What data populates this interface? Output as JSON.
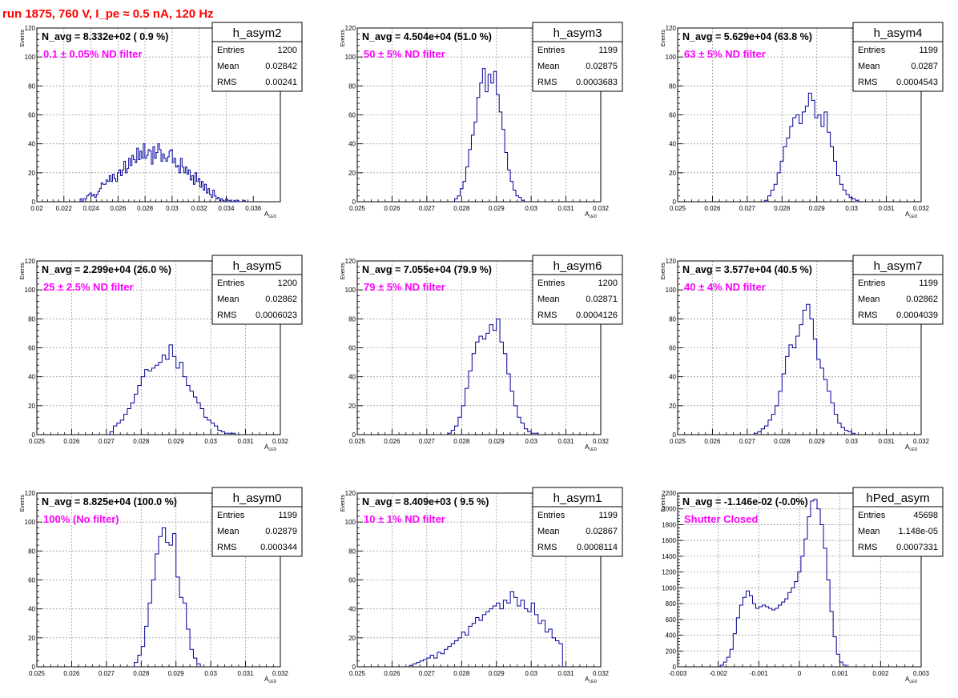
{
  "page": {
    "run_title": "run 1875,   760 V, I_pe ≈ 0.5 nA, 120 Hz",
    "hist_color": "#000099",
    "label_color": "#ff00ff",
    "title_color": "#ff0000"
  },
  "chart_data": [
    {
      "type": "histogram",
      "name": "h_asym2",
      "navg": "N_avg = 8.332e+02 ( 0.9 %)",
      "filter": "0.1 ± 0.05% ND filter",
      "stats": [
        {
          "label": "Entries",
          "value": "1200"
        },
        {
          "label": "Mean",
          "value": "0.02842"
        },
        {
          "label": "RMS",
          "value": "0.00241"
        }
      ],
      "xlim": [
        0.02,
        0.038
      ],
      "ylim": [
        0,
        120
      ],
      "xticks": [
        0.02,
        0.022,
        0.024,
        0.026,
        0.028,
        0.03,
        0.032,
        0.034,
        0.036
      ],
      "xtick_labels": [
        "0.02",
        "0.022",
        "0.024",
        "0.026",
        "0.028",
        "0.03",
        "0.032",
        "0.034",
        "0.036"
      ],
      "yticks": [
        0,
        20,
        40,
        60,
        80,
        100,
        120
      ],
      "ytick_labels": [
        "0",
        "20",
        "40",
        "60",
        "80",
        "100",
        "120"
      ],
      "xlabel": "A",
      "xlabel_sub": "LED",
      "ylabel": "Events",
      "bin_edges": [
        0.0232,
        0.0354
      ],
      "counts": [
        2,
        0,
        2,
        2,
        4,
        5,
        6,
        4,
        5,
        3,
        5,
        7,
        9,
        13,
        12,
        12,
        15,
        14,
        18,
        14,
        19,
        16,
        14,
        20,
        22,
        18,
        22,
        28,
        20,
        23,
        30,
        25,
        32,
        29,
        27,
        37,
        29,
        35,
        30,
        40,
        30,
        32,
        36,
        35,
        26,
        38,
        30,
        34,
        40,
        36,
        28,
        33,
        30,
        28,
        31,
        35,
        36,
        27,
        30,
        24,
        25,
        20,
        30,
        24,
        20,
        24,
        19,
        22,
        15,
        18,
        12,
        20,
        14,
        16,
        10,
        14,
        8,
        12,
        6,
        9,
        5,
        3,
        8,
        4,
        2,
        3,
        1,
        2,
        1,
        0,
        2,
        1,
        1,
        0,
        0,
        1,
        0,
        1,
        0,
        0,
        0,
        1
      ]
    },
    {
      "type": "histogram",
      "name": "h_asym3",
      "navg": "N_avg = 4.504e+04 (51.0 %)",
      "filter": "50 ± 5% ND filter",
      "stats": [
        {
          "label": "Entries",
          "value": "1199"
        },
        {
          "label": "Mean",
          "value": "0.02875"
        },
        {
          "label": "RMS",
          "value": "0.0003683"
        }
      ],
      "xlim": [
        0.025,
        0.032
      ],
      "ylim": [
        0,
        120
      ],
      "xticks": [
        0.025,
        0.026,
        0.027,
        0.028,
        0.029,
        0.03,
        0.031,
        0.032
      ],
      "xtick_labels": [
        "0.025",
        "0.026",
        "0.027",
        "0.028",
        "0.029",
        "0.03",
        "0.031",
        "0.032"
      ],
      "yticks": [
        0,
        20,
        40,
        60,
        80,
        100,
        120
      ],
      "ytick_labels": [
        "0",
        "20",
        "40",
        "60",
        "80",
        "100",
        "120"
      ],
      "xlabel": "A",
      "xlabel_sub": "LED",
      "ylabel": "Events",
      "bin_edges": [
        0.0278,
        0.0298
      ],
      "counts": [
        2,
        4,
        9,
        14,
        24,
        36,
        46,
        55,
        72,
        82,
        92,
        76,
        88,
        82,
        90,
        74,
        62,
        50,
        34,
        22,
        14,
        8,
        4,
        3,
        1
      ]
    },
    {
      "type": "histogram",
      "name": "h_asym4",
      "navg": "N_avg = 5.629e+04 (63.8 %)",
      "filter": "63 ± 5% ND filter",
      "stats": [
        {
          "label": "Entries",
          "value": "1199"
        },
        {
          "label": "Mean",
          "value": "0.0287"
        },
        {
          "label": "RMS",
          "value": "0.0004543"
        }
      ],
      "xlim": [
        0.025,
        0.032
      ],
      "ylim": [
        0,
        120
      ],
      "xticks": [
        0.025,
        0.026,
        0.027,
        0.028,
        0.029,
        0.03,
        0.031,
        0.032
      ],
      "xtick_labels": [
        "0.025",
        "0.026",
        "0.027",
        "0.028",
        "0.029",
        "0.03",
        "0.031",
        "0.032"
      ],
      "yticks": [
        0,
        20,
        40,
        60,
        80,
        100,
        120
      ],
      "ytick_labels": [
        "0",
        "20",
        "40",
        "60",
        "80",
        "100",
        "120"
      ],
      "xlabel": "A",
      "xlabel_sub": "LED",
      "ylabel": "Events",
      "bin_edges": [
        0.0275,
        0.0302
      ],
      "counts": [
        1,
        4,
        8,
        12,
        20,
        28,
        38,
        44,
        52,
        58,
        60,
        54,
        62,
        66,
        75,
        70,
        58,
        60,
        52,
        62,
        48,
        38,
        28,
        18,
        12,
        8,
        5,
        3,
        2,
        1
      ]
    },
    {
      "type": "histogram",
      "name": "h_asym5",
      "navg": "N_avg = 2.299e+04 (26.0 %)",
      "filter": "25 ± 2.5% ND filter",
      "stats": [
        {
          "label": "Entries",
          "value": "1200"
        },
        {
          "label": "Mean",
          "value": "0.02862"
        },
        {
          "label": "RMS",
          "value": "0.0006023"
        }
      ],
      "xlim": [
        0.025,
        0.032
      ],
      "ylim": [
        0,
        120
      ],
      "xticks": [
        0.025,
        0.026,
        0.027,
        0.028,
        0.029,
        0.03,
        0.031,
        0.032
      ],
      "xtick_labels": [
        "0.025",
        "0.026",
        "0.027",
        "0.028",
        "0.029",
        "0.03",
        "0.031",
        "0.032"
      ],
      "yticks": [
        0,
        20,
        40,
        60,
        80,
        100,
        120
      ],
      "ytick_labels": [
        "0",
        "20",
        "40",
        "60",
        "80",
        "100",
        "120"
      ],
      "xlabel": "A",
      "xlabel_sub": "LED",
      "ylabel": "Events",
      "bin_edges": [
        0.0271,
        0.0307
      ],
      "counts": [
        2,
        6,
        8,
        10,
        14,
        18,
        22,
        28,
        34,
        40,
        45,
        44,
        46,
        48,
        50,
        55,
        52,
        62,
        54,
        46,
        50,
        40,
        34,
        30,
        26,
        22,
        18,
        12,
        10,
        8,
        6,
        3,
        2,
        1,
        1,
        1
      ]
    },
    {
      "type": "histogram",
      "name": "h_asym6",
      "navg": "N_avg = 7.055e+04 (79.9 %)",
      "filter": "79 ± 5% ND filter",
      "stats": [
        {
          "label": "Entries",
          "value": "1200"
        },
        {
          "label": "Mean",
          "value": "0.02871"
        },
        {
          "label": "RMS",
          "value": "0.0004126"
        }
      ],
      "xlim": [
        0.025,
        0.032
      ],
      "ylim": [
        0,
        120
      ],
      "xticks": [
        0.025,
        0.026,
        0.027,
        0.028,
        0.029,
        0.03,
        0.031,
        0.032
      ],
      "xtick_labels": [
        "0.025",
        "0.026",
        "0.027",
        "0.028",
        "0.029",
        "0.03",
        "0.031",
        "0.032"
      ],
      "yticks": [
        0,
        20,
        40,
        60,
        80,
        100,
        120
      ],
      "ytick_labels": [
        "0",
        "20",
        "40",
        "60",
        "80",
        "100",
        "120"
      ],
      "xlabel": "A",
      "xlabel_sub": "LED",
      "ylabel": "Events",
      "bin_edges": [
        0.0276,
        0.0302
      ],
      "counts": [
        1,
        3,
        6,
        12,
        20,
        32,
        44,
        56,
        64,
        68,
        66,
        70,
        76,
        72,
        80,
        64,
        56,
        42,
        30,
        20,
        12,
        8,
        4,
        2,
        1,
        1
      ]
    },
    {
      "type": "histogram",
      "name": "h_asym7",
      "navg": "N_avg = 3.577e+04 (40.5 %)",
      "filter": "40 ± 4% ND filter",
      "stats": [
        {
          "label": "Entries",
          "value": "1199"
        },
        {
          "label": "Mean",
          "value": "0.02862"
        },
        {
          "label": "RMS",
          "value": "0.0004039"
        }
      ],
      "xlim": [
        0.025,
        0.032
      ],
      "ylim": [
        0,
        120
      ],
      "xticks": [
        0.025,
        0.026,
        0.027,
        0.028,
        0.029,
        0.03,
        0.031,
        0.032
      ],
      "xtick_labels": [
        "0.025",
        "0.026",
        "0.027",
        "0.028",
        "0.029",
        "0.03",
        "0.031",
        "0.032"
      ],
      "yticks": [
        0,
        20,
        40,
        60,
        80,
        100,
        120
      ],
      "ytick_labels": [
        "0",
        "20",
        "40",
        "60",
        "80",
        "100",
        "120"
      ],
      "xlabel": "A",
      "xlabel_sub": "LED",
      "ylabel": "Events",
      "bin_edges": [
        0.0272,
        0.0301
      ],
      "counts": [
        1,
        2,
        4,
        6,
        10,
        14,
        20,
        30,
        42,
        54,
        62,
        60,
        68,
        76,
        86,
        90,
        80,
        66,
        52,
        46,
        38,
        30,
        22,
        14,
        8,
        5,
        3,
        2,
        1
      ]
    },
    {
      "type": "histogram",
      "name": "h_asym0",
      "navg": "N_avg = 8.825e+04 (100.0 %)",
      "filter": "100% (No filter)",
      "stats": [
        {
          "label": "Entries",
          "value": "1199"
        },
        {
          "label": "Mean",
          "value": "0.02879"
        },
        {
          "label": "RMS",
          "value": "0.000344"
        }
      ],
      "xlim": [
        0.025,
        0.032
      ],
      "ylim": [
        0,
        120
      ],
      "xticks": [
        0.025,
        0.026,
        0.027,
        0.028,
        0.029,
        0.03,
        0.031,
        0.032
      ],
      "xtick_labels": [
        "0.025",
        "0.026",
        "0.027",
        "0.028",
        "0.029",
        "0.03",
        "0.031",
        "0.032"
      ],
      "yticks": [
        0,
        20,
        40,
        60,
        80,
        100,
        120
      ],
      "ytick_labels": [
        "0",
        "20",
        "40",
        "60",
        "80",
        "100",
        "120"
      ],
      "xlabel": "A",
      "xlabel_sub": "LED",
      "ylabel": "Events",
      "bin_edges": [
        0.0278,
        0.0297
      ],
      "counts": [
        3,
        8,
        14,
        28,
        44,
        60,
        78,
        90,
        96,
        86,
        84,
        92,
        62,
        48,
        44,
        26,
        12,
        6,
        2
      ]
    },
    {
      "type": "histogram",
      "name": "h_asym1",
      "navg": "N_avg = 8.409e+03 ( 9.5 %)",
      "filter": "10 ± 1% ND filter",
      "stats": [
        {
          "label": "Entries",
          "value": "1199"
        },
        {
          "label": "Mean",
          "value": "0.02867"
        },
        {
          "label": "RMS",
          "value": "0.0008114"
        }
      ],
      "xlim": [
        0.025,
        0.032
      ],
      "ylim": [
        0,
        120
      ],
      "xticks": [
        0.025,
        0.026,
        0.027,
        0.028,
        0.029,
        0.03,
        0.031,
        0.032
      ],
      "xtick_labels": [
        "0.025",
        "0.026",
        "0.027",
        "0.028",
        "0.029",
        "0.03",
        "0.031",
        "0.032"
      ],
      "yticks": [
        0,
        20,
        40,
        60,
        80,
        100,
        120
      ],
      "ytick_labels": [
        "0",
        "20",
        "40",
        "60",
        "80",
        "100",
        "120"
      ],
      "xlabel": "A",
      "xlabel_sub": "LED",
      "ylabel": "Events",
      "bin_edges": [
        0.0265,
        0.0309
      ],
      "counts": [
        1,
        2,
        3,
        4,
        5,
        6,
        8,
        6,
        10,
        9,
        12,
        14,
        16,
        18,
        20,
        24,
        22,
        28,
        30,
        34,
        32,
        36,
        38,
        40,
        42,
        44,
        40,
        46,
        44,
        52,
        48,
        42,
        46,
        40,
        38,
        44,
        36,
        30,
        32,
        24,
        26,
        20,
        18,
        16
      ]
    },
    {
      "type": "histogram",
      "name": "hPed_asym",
      "navg": "N_avg = -1.146e-02 (-0.0%)",
      "filter": "Shutter Closed",
      "stats": [
        {
          "label": "Entries",
          "value": "45698"
        },
        {
          "label": "Mean",
          "value": "1.148e-05"
        },
        {
          "label": "RMS",
          "value": "0.0007331"
        }
      ],
      "xlim": [
        -0.003,
        0.003
      ],
      "ylim": [
        0,
        2200
      ],
      "xticks": [
        -0.003,
        -0.002,
        -0.001,
        0,
        0.001,
        0.002,
        0.003
      ],
      "xtick_labels": [
        "-0.003",
        "-0.002",
        "-0.001",
        "0",
        "0.001",
        "0.002",
        "0.003"
      ],
      "yticks": [
        0,
        200,
        400,
        600,
        800,
        1000,
        1200,
        1400,
        1600,
        1800,
        2000,
        2200
      ],
      "ytick_labels": [
        "0",
        "200",
        "400",
        "600",
        "800",
        "1000",
        "1200",
        "1400",
        "1600",
        "1800",
        "2000",
        "2200"
      ],
      "xlabel": "A",
      "xlabel_sub": "LED",
      "ylabel": "Events",
      "bin_edges": [
        -0.00195,
        0.00115
      ],
      "counts": [
        20,
        60,
        120,
        220,
        420,
        620,
        780,
        880,
        960,
        900,
        800,
        740,
        760,
        780,
        760,
        740,
        720,
        740,
        780,
        820,
        860,
        940,
        1000,
        1080,
        1200,
        1400,
        1620,
        1900,
        2100,
        2120,
        2000,
        1800,
        1500,
        1100,
        700,
        380,
        160,
        60,
        20
      ]
    }
  ]
}
